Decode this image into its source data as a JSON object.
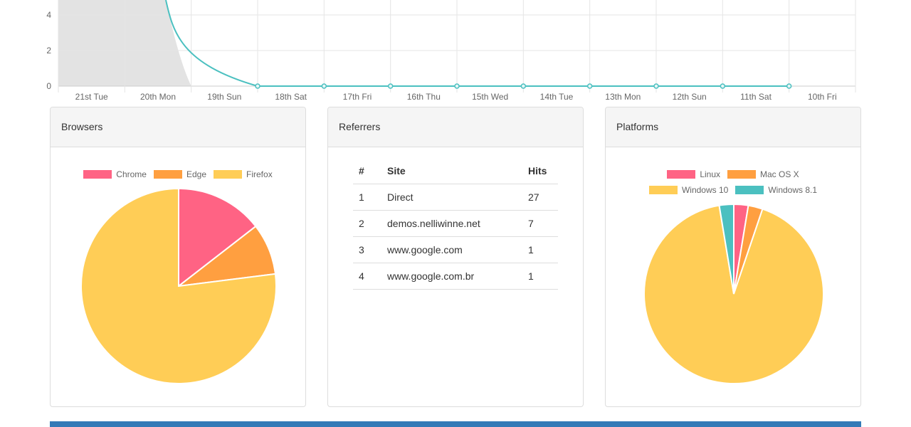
{
  "colors": {
    "red": "#ff6384",
    "orange": "#ff9f40",
    "yellow": "#ffcd56",
    "teal": "#4bc0c0",
    "fill_grey": "#e3e3e3",
    "brand_blue": "#337ab7"
  },
  "chart_data": [
    {
      "type": "line",
      "x": [
        "21st Tue",
        "20th Mon",
        "19th Sun",
        "18th Sat",
        "17th Fri",
        "16th Thu",
        "15th Wed",
        "14th Tue",
        "13th Mon",
        "12th Sun",
        "11th Sat",
        "10th Fri"
      ],
      "y_ticks": [
        0,
        2,
        4
      ],
      "series": [
        {
          "values": [
            null,
            null,
            0,
            0,
            0,
            0,
            0,
            0,
            0,
            0,
            0,
            null
          ],
          "color": "#4bc0c0"
        }
      ],
      "grid": true
    },
    {
      "type": "pie",
      "legend": "top",
      "labels": [
        "Chrome",
        "Edge",
        "Firefox"
      ],
      "values": [
        14.5,
        8.5,
        77
      ],
      "colors": [
        "#ff6384",
        "#ff9f40",
        "#ffcd56"
      ]
    },
    {
      "type": "pie",
      "legend": "top",
      "labels": [
        "Linux",
        "Mac OS X",
        "Windows 10",
        "Windows 8.1"
      ],
      "values": [
        2.6,
        2.6,
        92.2,
        2.6
      ],
      "colors": [
        "#ff6384",
        "#ff9f40",
        "#ffcd56",
        "#4bc0c0"
      ]
    }
  ],
  "panels": {
    "browsers": {
      "title": "Browsers"
    },
    "referrers": {
      "title": "Referrers",
      "headers": [
        "#",
        "Site",
        "Hits"
      ],
      "rows": [
        [
          "1",
          "Direct",
          "27"
        ],
        [
          "2",
          "demos.nelliwinne.net",
          "7"
        ],
        [
          "3",
          "www.google.com",
          "1"
        ],
        [
          "4",
          "www.google.com.br",
          "1"
        ]
      ]
    },
    "platforms": {
      "title": "Platforms"
    }
  }
}
